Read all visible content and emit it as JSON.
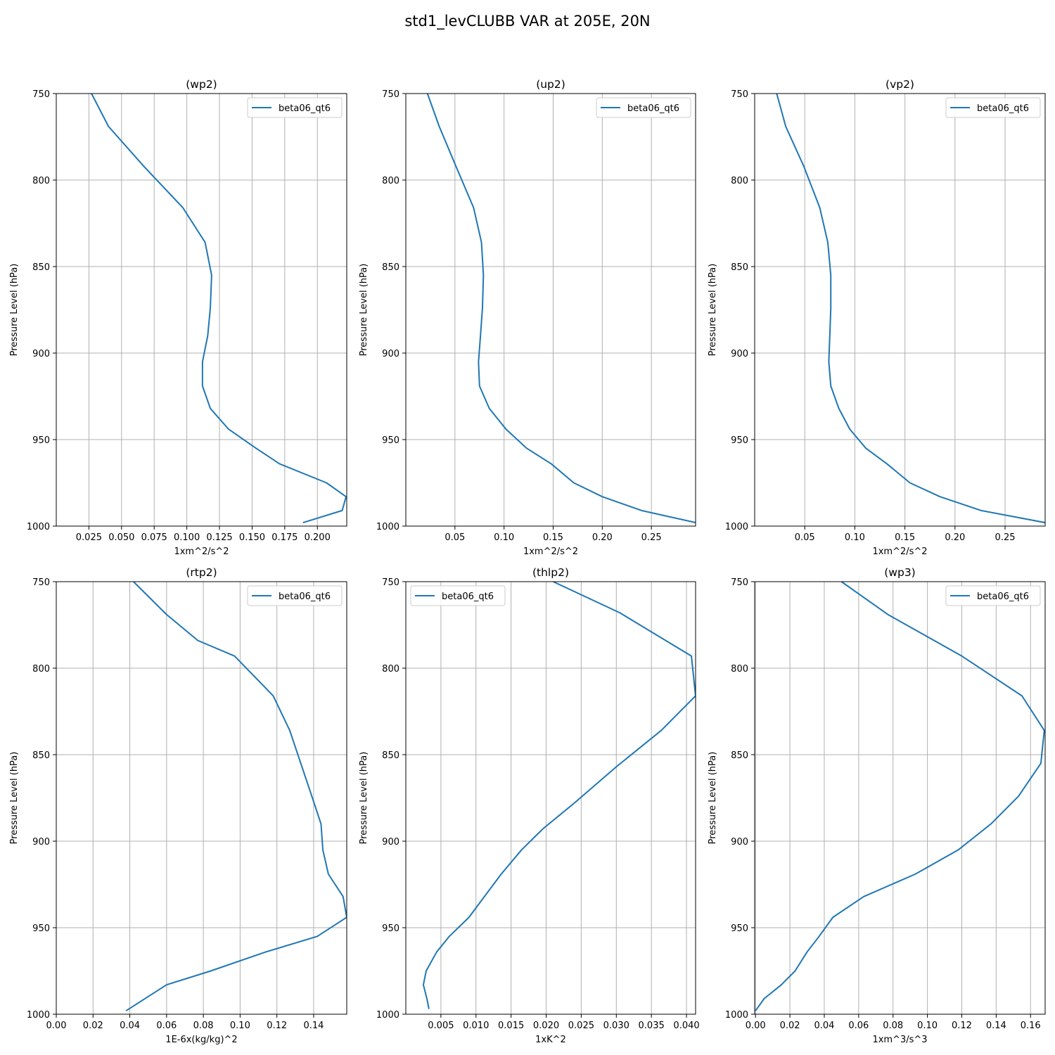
{
  "figure": {
    "suptitle": "std1_levCLUBB VAR at 205E, 20N"
  },
  "colors": {
    "line": "#1f77b4",
    "grid": "#b0b0b0",
    "axes": "#000000",
    "legend_border": "#cccccc"
  },
  "chart_data": [
    {
      "type": "line",
      "title": "(wp2)",
      "xlabel": "1xm^2/s^2",
      "ylabel": "Pressure Level (hPa)",
      "xlim": [
        0.0,
        0.2225
      ],
      "ylim": [
        1000,
        750
      ],
      "y_inverted": true,
      "xticks": [
        0.025,
        0.05,
        0.075,
        0.1,
        0.125,
        0.15,
        0.175,
        0.2
      ],
      "xtick_labels": [
        "0.025",
        "0.050",
        "0.075",
        "0.100",
        "0.125",
        "0.150",
        "0.175",
        "0.200"
      ],
      "yticks": [
        750,
        800,
        850,
        900,
        950,
        1000
      ],
      "grid": true,
      "legend_position": "upper right",
      "series": [
        {
          "name": "beta06_qt6",
          "x": [
            0.027,
            0.04,
            0.067,
            0.097,
            0.114,
            0.119,
            0.118,
            0.116,
            0.112,
            0.112,
            0.118,
            0.132,
            0.153,
            0.171,
            0.207,
            0.222,
            0.219,
            0.189
          ],
          "y": [
            750,
            769,
            792,
            816,
            836,
            855,
            874,
            890,
            905,
            919,
            932,
            944,
            955,
            964,
            975,
            983,
            991,
            998
          ]
        }
      ]
    },
    {
      "type": "line",
      "title": "(up2)",
      "xlabel": "1xm^2/s^2",
      "ylabel": "Pressure Level (hPa)",
      "xlim": [
        0.0,
        0.295
      ],
      "ylim": [
        1000,
        750
      ],
      "y_inverted": true,
      "xticks": [
        0.05,
        0.1,
        0.15,
        0.2,
        0.25
      ],
      "xtick_labels": [
        "0.05",
        "0.10",
        "0.15",
        "0.20",
        "0.25"
      ],
      "yticks": [
        750,
        800,
        850,
        900,
        950,
        1000
      ],
      "grid": true,
      "legend_position": "upper right",
      "series": [
        {
          "name": "beta06_qt6",
          "x": [
            0.022,
            0.034,
            0.051,
            0.069,
            0.077,
            0.079,
            0.078,
            0.076,
            0.074,
            0.075,
            0.085,
            0.102,
            0.123,
            0.148,
            0.171,
            0.2,
            0.24,
            0.295
          ],
          "y": [
            750,
            769,
            792,
            816,
            836,
            855,
            874,
            890,
            905,
            919,
            932,
            944,
            955,
            964,
            975,
            983,
            991,
            998
          ]
        }
      ]
    },
    {
      "type": "line",
      "title": "(vp2)",
      "xlabel": "1xm^2/s^2",
      "ylabel": "Pressure Level (hPa)",
      "xlim": [
        0.0,
        0.29
      ],
      "ylim": [
        1000,
        750
      ],
      "y_inverted": true,
      "xticks": [
        0.05,
        0.1,
        0.15,
        0.2,
        0.25
      ],
      "xtick_labels": [
        "0.05",
        "0.10",
        "0.15",
        "0.20",
        "0.25"
      ],
      "yticks": [
        750,
        800,
        850,
        900,
        950,
        1000
      ],
      "grid": true,
      "legend_position": "upper right",
      "series": [
        {
          "name": "beta06_qt6",
          "x": [
            0.022,
            0.031,
            0.049,
            0.065,
            0.073,
            0.076,
            0.076,
            0.075,
            0.074,
            0.076,
            0.084,
            0.095,
            0.111,
            0.132,
            0.155,
            0.185,
            0.226,
            0.29
          ],
          "y": [
            750,
            769,
            792,
            816,
            836,
            855,
            874,
            890,
            905,
            919,
            932,
            944,
            955,
            964,
            975,
            983,
            991,
            998
          ]
        }
      ]
    },
    {
      "type": "line",
      "title": "(rtp2)",
      "xlabel": "1E-6x(kg/kg)^2",
      "ylabel": "Pressure Level (hPa)",
      "xlim": [
        0.0,
        0.158
      ],
      "ylim": [
        1000,
        750
      ],
      "y_inverted": true,
      "xticks": [
        0.0,
        0.02,
        0.04,
        0.06,
        0.08,
        0.1,
        0.12,
        0.14
      ],
      "xtick_labels": [
        "0.00",
        "0.02",
        "0.04",
        "0.06",
        "0.08",
        "0.10",
        "0.12",
        "0.14"
      ],
      "yticks": [
        750,
        800,
        850,
        900,
        950,
        1000
      ],
      "grid": true,
      "legend_position": "upper right",
      "series": [
        {
          "name": "beta06_qt6",
          "x": [
            0.042,
            0.06,
            0.077,
            0.097,
            0.118,
            0.127,
            0.133,
            0.139,
            0.144,
            0.145,
            0.148,
            0.156,
            0.158,
            0.142,
            0.114,
            0.084,
            0.06,
            0.038
          ],
          "y": [
            750,
            769,
            784,
            793,
            816,
            836,
            855,
            874,
            890,
            905,
            919,
            932,
            944,
            955,
            964,
            975,
            983,
            998
          ]
        }
      ]
    },
    {
      "type": "line",
      "title": "(thlp2)",
      "xlabel": "1xK^2",
      "ylabel": "Pressure Level (hPa)",
      "xlim": [
        0.0,
        0.0413
      ],
      "ylim": [
        1000,
        750
      ],
      "y_inverted": true,
      "xticks": [
        0.005,
        0.01,
        0.015,
        0.02,
        0.025,
        0.03,
        0.035,
        0.04
      ],
      "xtick_labels": [
        "0.005",
        "0.010",
        "0.015",
        "0.020",
        "0.025",
        "0.030",
        "0.035",
        "0.040"
      ],
      "yticks": [
        750,
        800,
        850,
        900,
        950,
        1000
      ],
      "grid": true,
      "legend_position": "upper left",
      "series": [
        {
          "name": "beta06_qt6",
          "x": [
            0.021,
            0.0305,
            0.0407,
            0.0413,
            0.0364,
            0.03,
            0.024,
            0.0195,
            0.0165,
            0.0136,
            0.0112,
            0.009,
            0.0062,
            0.0044,
            0.0029,
            0.0025,
            0.003,
            0.0033
          ],
          "y": [
            750,
            768,
            793,
            816,
            836,
            857,
            878,
            893,
            905,
            919,
            932,
            944,
            955,
            964,
            975,
            983,
            991,
            997
          ]
        }
      ]
    },
    {
      "type": "line",
      "title": "(wp3)",
      "xlabel": "1xm^3/s^3",
      "ylabel": "Pressure Level (hPa)",
      "xlim": [
        -0.0005,
        0.1685
      ],
      "ylim": [
        1000,
        750
      ],
      "y_inverted": true,
      "xticks": [
        0.0,
        0.02,
        0.04,
        0.06,
        0.08,
        0.1,
        0.12,
        0.14,
        0.16
      ],
      "xtick_labels": [
        "0.00",
        "0.02",
        "0.04",
        "0.06",
        "0.08",
        "0.10",
        "0.12",
        "0.14",
        "0.16"
      ],
      "yticks": [
        750,
        800,
        850,
        900,
        950,
        1000
      ],
      "grid": true,
      "legend_position": "upper right",
      "series": [
        {
          "name": "beta06_qt6",
          "x": [
            0.05,
            0.077,
            0.12,
            0.155,
            0.168,
            0.166,
            0.153,
            0.137,
            0.118,
            0.093,
            0.063,
            0.045,
            0.037,
            0.03,
            0.023,
            0.015,
            0.005,
            0.0
          ],
          "y": [
            750,
            769,
            793,
            816,
            836,
            855,
            874,
            890,
            905,
            919,
            932,
            944,
            955,
            964,
            975,
            983,
            991,
            998
          ]
        }
      ]
    }
  ]
}
